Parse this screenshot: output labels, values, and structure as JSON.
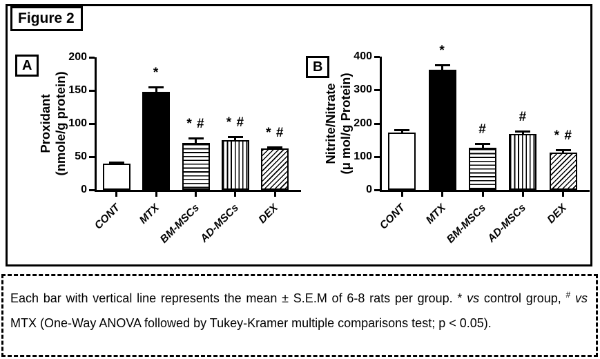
{
  "figure": {
    "label": "Figure 2"
  },
  "colors": {
    "ink": "#000000",
    "paper": "#ffffff"
  },
  "caption": {
    "seg1": "Each bar with vertical line represents the mean ± S.E.M of 6-8 rats per group.",
    "star": "*",
    "vs1": "vs",
    "seg2": "control group,",
    "hash": "#",
    "vs2": "vs",
    "seg3": "MTX (One-Way ANOVA followed by Tukey-Kramer multiple comparisons test; p < 0.05)."
  },
  "chart_data": [
    {
      "type": "bar",
      "panel": "A",
      "title": "",
      "xlabel": "",
      "ylabel": "Proxidant (nmole/g protein)",
      "ylabel_lines": [
        "Proxidant",
        "(nmole/g protein)"
      ],
      "categories": [
        "CONT",
        "MTX",
        "BM-MSCs",
        "AD-MSCs",
        "DEX"
      ],
      "values": [
        40,
        148,
        71,
        75,
        63
      ],
      "errors": [
        3,
        8,
        8,
        6,
        3
      ],
      "annotations": [
        "",
        "*",
        "* #",
        "* #",
        "* #"
      ],
      "patterns": [
        "open",
        "solid",
        "hlines",
        "vlines",
        "dlines"
      ],
      "yticks": [
        0,
        50,
        100,
        150,
        200
      ],
      "ylim": [
        0,
        200
      ],
      "grid": false,
      "legend": false
    },
    {
      "type": "bar",
      "panel": "B",
      "title": "",
      "xlabel": "",
      "ylabel": "Nitrite/Nitrate (μ mol/g Protein)",
      "ylabel_lines": [
        "Nitrite/Nitrate",
        "(μ mol/g Protein)"
      ],
      "categories": [
        "CONT",
        "MTX",
        "BM-MSCs",
        "AD-MSCs",
        "DEX"
      ],
      "values": [
        172,
        360,
        126,
        167,
        111
      ],
      "errors": [
        11,
        18,
        14,
        12,
        12
      ],
      "annotations": [
        "",
        "*",
        "#",
        "#",
        "* #"
      ],
      "patterns": [
        "open",
        "solid",
        "hlines",
        "vlines",
        "dlines"
      ],
      "yticks": [
        0,
        100,
        200,
        300,
        400
      ],
      "ylim": [
        0,
        400
      ],
      "grid": false,
      "legend": false
    }
  ]
}
